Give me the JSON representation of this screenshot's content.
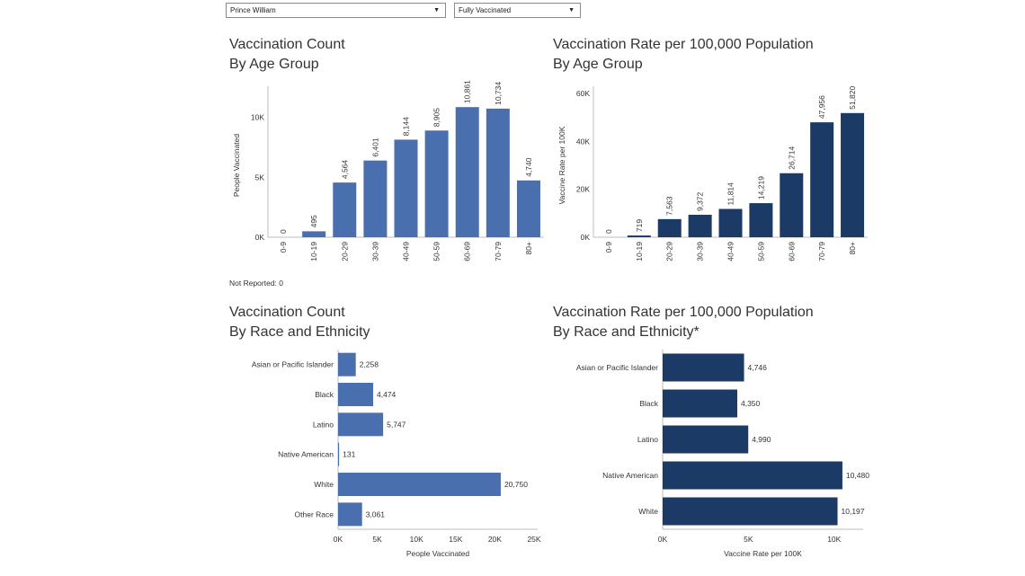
{
  "filters": {
    "locality": {
      "value": "Prince William"
    },
    "dose_status": {
      "value": "Fully Vaccinated"
    }
  },
  "panels": {
    "count_age": {
      "title_line1": "Vaccination Count",
      "title_line2": "By Age Group"
    },
    "rate_age": {
      "title_line1": "Vaccination Rate per 100,000 Population",
      "title_line2": "By Age Group"
    },
    "count_race": {
      "title_line1": "Vaccination Count",
      "title_line2": "By Race and Ethnicity"
    },
    "rate_race": {
      "title_line1": "Vaccination Rate per 100,000 Population",
      "title_line2": "By Race and Ethnicity*"
    }
  },
  "not_reported": "Not Reported: 0",
  "colors": {
    "count_bar": "#4a6fae",
    "rate_bar": "#1b3a66",
    "axis": "#bdbdbd"
  },
  "chart_data": [
    {
      "id": "count_age",
      "type": "bar",
      "orientation": "vertical",
      "categories": [
        "0-9",
        "10-19",
        "20-29",
        "30-39",
        "40-49",
        "50-59",
        "60-69",
        "70-79",
        "80+"
      ],
      "values": [
        0,
        495,
        4564,
        6401,
        8144,
        8905,
        10861,
        10734,
        4740
      ],
      "data_labels": [
        "0",
        "495",
        "4,564",
        "6,401",
        "8,144",
        "8,905",
        "10,861",
        "10,734",
        "4,740"
      ],
      "xlabel": "",
      "ylabel": "People Vaccinated",
      "yticks": [
        0,
        5000,
        10000
      ],
      "ytick_labels": [
        "0K",
        "5K",
        "10K"
      ],
      "ylim": [
        0,
        12000
      ],
      "grid": false
    },
    {
      "id": "rate_age",
      "type": "bar",
      "orientation": "vertical",
      "categories": [
        "0-9",
        "10-19",
        "20-29",
        "30-39",
        "40-49",
        "50-59",
        "60-69",
        "70-79",
        "80+"
      ],
      "values": [
        0,
        719,
        7563,
        9372,
        11814,
        14219,
        26714,
        47956,
        51820
      ],
      "data_labels": [
        "0",
        "719",
        "7,563",
        "9,372",
        "11,814",
        "14,219",
        "26,714",
        "47,956",
        "51,820"
      ],
      "xlabel": "",
      "ylabel": "Vaccine Rate per 100K",
      "yticks": [
        0,
        20000,
        40000,
        60000
      ],
      "ytick_labels": [
        "0K",
        "20K",
        "40K",
        "60K"
      ],
      "ylim": [
        0,
        60000
      ],
      "grid": false
    },
    {
      "id": "count_race",
      "type": "bar",
      "orientation": "horizontal",
      "categories": [
        "Asian or Pacific Islander",
        "Black",
        "Latino",
        "Native American",
        "White",
        "Other Race"
      ],
      "values": [
        2258,
        4474,
        5747,
        131,
        20750,
        3061
      ],
      "data_labels": [
        "2,258",
        "4,474",
        "5,747",
        "131",
        "20,750",
        "3,061"
      ],
      "xlabel": "People Vaccinated",
      "ylabel": "",
      "xticks": [
        0,
        5000,
        10000,
        15000,
        20000,
        25000
      ],
      "xtick_labels": [
        "0K",
        "5K",
        "10K",
        "15K",
        "20K",
        "25K"
      ],
      "xlim": [
        0,
        25000
      ],
      "grid": false
    },
    {
      "id": "rate_race",
      "type": "bar",
      "orientation": "horizontal",
      "categories": [
        "Asian or Pacific Islander",
        "Black",
        "Latino",
        "Native American",
        "White"
      ],
      "values": [
        4746,
        4350,
        4990,
        10480,
        10197
      ],
      "data_labels": [
        "4,746",
        "4,350",
        "4,990",
        "10,480",
        "10,197"
      ],
      "xlabel": "Vaccine Rate per 100K",
      "ylabel": "",
      "xticks": [
        0,
        5000,
        10000
      ],
      "xtick_labels": [
        "0K",
        "5K",
        "10K"
      ],
      "xlim": [
        0,
        13000
      ],
      "grid": false
    }
  ]
}
